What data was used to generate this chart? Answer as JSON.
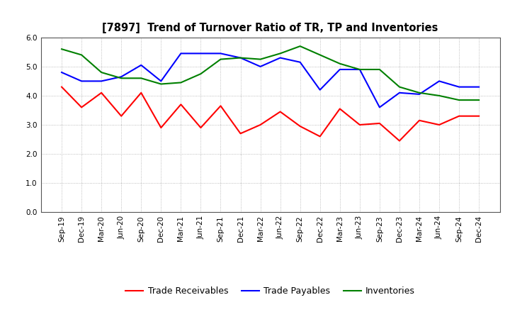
{
  "title": "[7897]  Trend of Turnover Ratio of TR, TP and Inventories",
  "x_labels": [
    "Sep-19",
    "Dec-19",
    "Mar-20",
    "Jun-20",
    "Sep-20",
    "Dec-20",
    "Mar-21",
    "Jun-21",
    "Sep-21",
    "Dec-21",
    "Mar-22",
    "Jun-22",
    "Sep-22",
    "Dec-22",
    "Mar-23",
    "Jun-23",
    "Sep-23",
    "Dec-23",
    "Mar-24",
    "Jun-24",
    "Sep-24",
    "Dec-24"
  ],
  "trade_receivables": [
    4.3,
    3.6,
    4.1,
    3.3,
    4.1,
    2.9,
    3.7,
    2.9,
    3.65,
    2.7,
    3.0,
    3.45,
    2.95,
    2.6,
    3.55,
    3.0,
    3.05,
    2.45,
    3.15,
    3.0,
    3.3,
    3.3
  ],
  "trade_payables": [
    4.8,
    4.5,
    4.5,
    4.65,
    5.05,
    4.5,
    5.45,
    5.45,
    5.45,
    5.3,
    5.0,
    5.3,
    5.15,
    4.2,
    4.9,
    4.9,
    3.6,
    4.1,
    4.05,
    4.5,
    4.3,
    4.3
  ],
  "inventories": [
    5.6,
    5.4,
    4.8,
    4.6,
    4.6,
    4.4,
    4.45,
    4.75,
    5.25,
    5.3,
    5.25,
    5.45,
    5.7,
    5.4,
    5.1,
    4.9,
    4.9,
    4.3,
    4.1,
    4.0,
    3.85,
    3.85
  ],
  "ylim": [
    0.0,
    6.0
  ],
  "yticks": [
    0.0,
    1.0,
    2.0,
    3.0,
    4.0,
    5.0,
    6.0
  ],
  "colors": {
    "trade_receivables": "#ff0000",
    "trade_payables": "#0000ff",
    "inventories": "#008000"
  },
  "legend_labels": [
    "Trade Receivables",
    "Trade Payables",
    "Inventories"
  ],
  "background_color": "#ffffff",
  "grid_color": "#aaaaaa"
}
